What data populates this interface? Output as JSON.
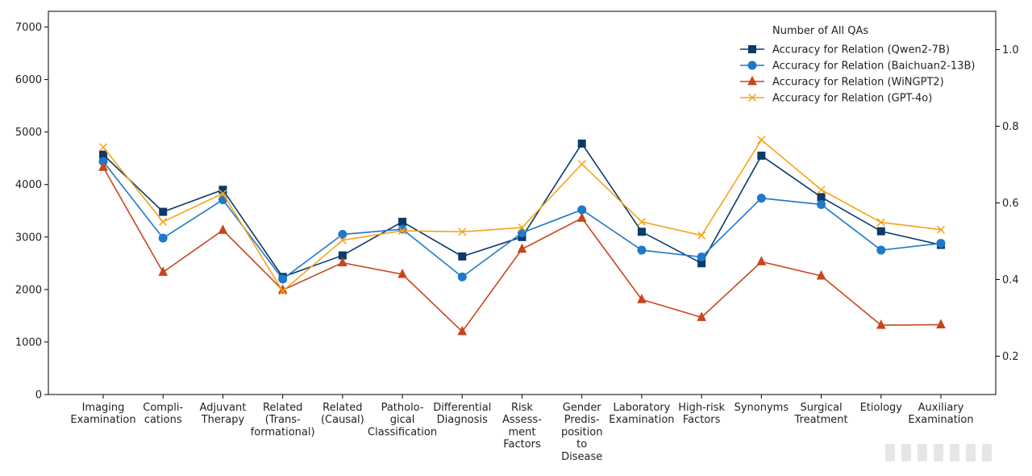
{
  "chart_data": {
    "type": "line",
    "categories": [
      [
        "Imaging",
        "Examination"
      ],
      [
        "Compli-",
        "cations"
      ],
      [
        "Adjuvant",
        "Therapy"
      ],
      [
        "Related",
        "(Trans-",
        "formational)"
      ],
      [
        "Related",
        "(Causal)"
      ],
      [
        "Patholo-",
        "gical",
        "Classification"
      ],
      [
        "Differential",
        "Diagnosis"
      ],
      [
        "Risk",
        "Assess-",
        "ment",
        "Factors"
      ],
      [
        "Gender",
        "Predis-",
        "position",
        "to",
        "Disease"
      ],
      [
        "Laboratory",
        "Examination"
      ],
      [
        "High-risk",
        "Factors"
      ],
      [
        "Synonyms"
      ],
      [
        "Surgical",
        "Treatment"
      ],
      [
        "Etiology"
      ],
      [
        "Auxiliary",
        "Examination"
      ]
    ],
    "left_axis": {
      "ylim": [
        0,
        7300
      ],
      "ticks": [
        0,
        1000,
        2000,
        3000,
        4000,
        5000,
        6000,
        7000
      ]
    },
    "right_axis": {
      "ylim": [
        0.1,
        1.1
      ],
      "ticks": [
        "0.2",
        "0.4",
        "0.6",
        "0.8",
        "1.0"
      ]
    },
    "legend_title": "Number of All QAs",
    "legend_position": "top-right",
    "grid": false,
    "series": [
      {
        "name": "Accuracy for Relation (Qwen2-7B)",
        "color": "#0b3a6b",
        "marker": "square",
        "values": [
          4570,
          3480,
          3900,
          2240,
          2650,
          3290,
          2630,
          3000,
          4780,
          3100,
          2500,
          4550,
          3760,
          3110,
          2850
        ]
      },
      {
        "name": "Accuracy for Relation (Baichuan2-13B)",
        "color": "#1f78c8",
        "marker": "circle",
        "values": [
          4440,
          2980,
          3710,
          2200,
          3050,
          3150,
          2240,
          3080,
          3520,
          2750,
          2620,
          3740,
          3620,
          2750,
          2880
        ]
      },
      {
        "name": "Accuracy for Relation (WiNGPT2)",
        "color": "#c9461b",
        "marker": "triangle",
        "values": [
          4330,
          2330,
          3130,
          1990,
          2510,
          2290,
          1200,
          2770,
          3360,
          1810,
          1470,
          2530,
          2260,
          1320,
          1330
        ]
      },
      {
        "name": "Accuracy for Relation (GPT-4o)",
        "color": "#f5a31a",
        "marker": "x",
        "values": [
          4710,
          3290,
          3830,
          1970,
          2940,
          3120,
          3100,
          3180,
          4390,
          3290,
          3030,
          4850,
          3900,
          3280,
          3140
        ]
      }
    ]
  }
}
